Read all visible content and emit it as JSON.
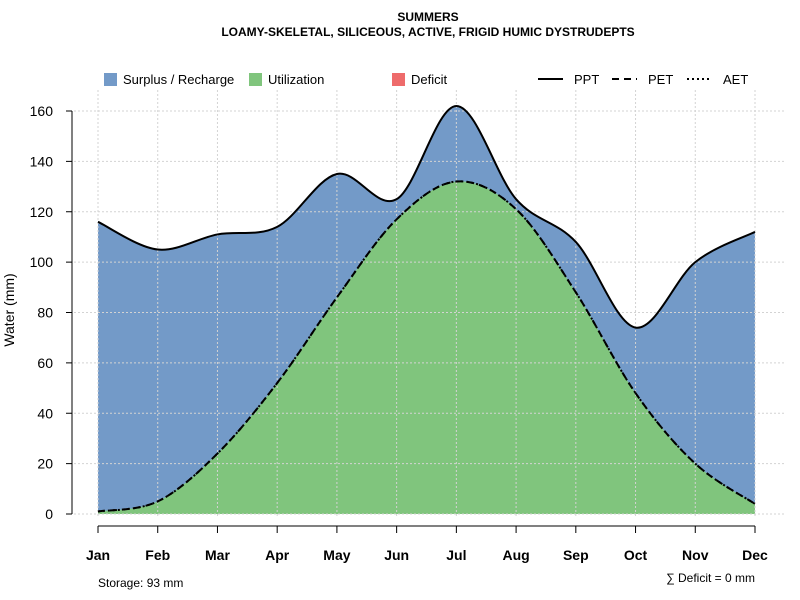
{
  "chart_data": {
    "type": "area",
    "title": "SUMMERS",
    "subtitle": "LOAMY-SKELETAL, SILICEOUS, ACTIVE, FRIGID HUMIC DYSTRUDEPTS",
    "xlabel": "",
    "ylabel": "Water (mm)",
    "ylim": [
      0,
      168
    ],
    "yticks": [
      0,
      20,
      40,
      60,
      80,
      100,
      120,
      140,
      160
    ],
    "grid": true,
    "categories": [
      "Jan",
      "Feb",
      "Mar",
      "Apr",
      "May",
      "Jun",
      "Jul",
      "Aug",
      "Sep",
      "Oct",
      "Nov",
      "Dec"
    ],
    "series": [
      {
        "name": "PPT",
        "style": "solid",
        "values": [
          116,
          105,
          111,
          114,
          135,
          125,
          162,
          125,
          108,
          74,
          100,
          112
        ]
      },
      {
        "name": "PET",
        "style": "dashed",
        "values": [
          1,
          5,
          24,
          52,
          86,
          117,
          132,
          121,
          88,
          48,
          20,
          4
        ]
      },
      {
        "name": "AET",
        "style": "dotted",
        "values": [
          1,
          5,
          24,
          52,
          86,
          117,
          132,
          121,
          88,
          48,
          20,
          4
        ]
      }
    ],
    "legend": {
      "fills": [
        {
          "label": "Surplus / Recharge",
          "color": "#739AC8"
        },
        {
          "label": "Utilization",
          "color": "#80C57D"
        },
        {
          "label": "Deficit",
          "color": "#EE6B6B"
        }
      ],
      "lines": [
        {
          "label": "PPT",
          "style": "solid"
        },
        {
          "label": "PET",
          "style": "dashed"
        },
        {
          "label": "AET",
          "style": "dotted"
        }
      ],
      "position": "top"
    },
    "annotations": {
      "storage": "Storage: 93 mm",
      "deficit": "∑ Deficit = 0 mm"
    }
  },
  "colors": {
    "surplus": "#739AC8",
    "utilization": "#80C57D",
    "deficit": "#EE6B6B",
    "grid": "#d3d3d3"
  }
}
